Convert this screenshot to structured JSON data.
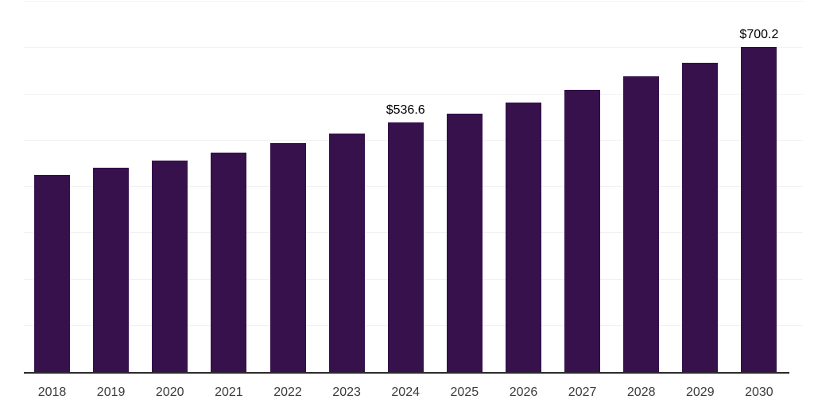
{
  "chart_data": {
    "type": "bar",
    "title": "",
    "xlabel": "",
    "ylabel": "",
    "categories": [
      "2018",
      "2019",
      "2020",
      "2021",
      "2022",
      "2023",
      "2024",
      "2025",
      "2026",
      "2027",
      "2028",
      "2029",
      "2030"
    ],
    "values": [
      424,
      440,
      455,
      473,
      492,
      514,
      536.6,
      557,
      581,
      608,
      637,
      666,
      700.2
    ],
    "data_labels": {
      "2024": "$536.6",
      "2030": "$700.2"
    },
    "value_prefix": "$",
    "ylim": [
      0,
      800
    ],
    "y_gridline_step": 100,
    "grid": "horizontal, unlabeled, light gray",
    "legend": "none",
    "y_axis_labels_visible": false,
    "colors": {
      "bar": "#36114c",
      "gridline": "#f1f1f1",
      "axis_line": "#2b2b2b",
      "tick_label": "#3b3b3b",
      "data_label": "#000000"
    }
  }
}
